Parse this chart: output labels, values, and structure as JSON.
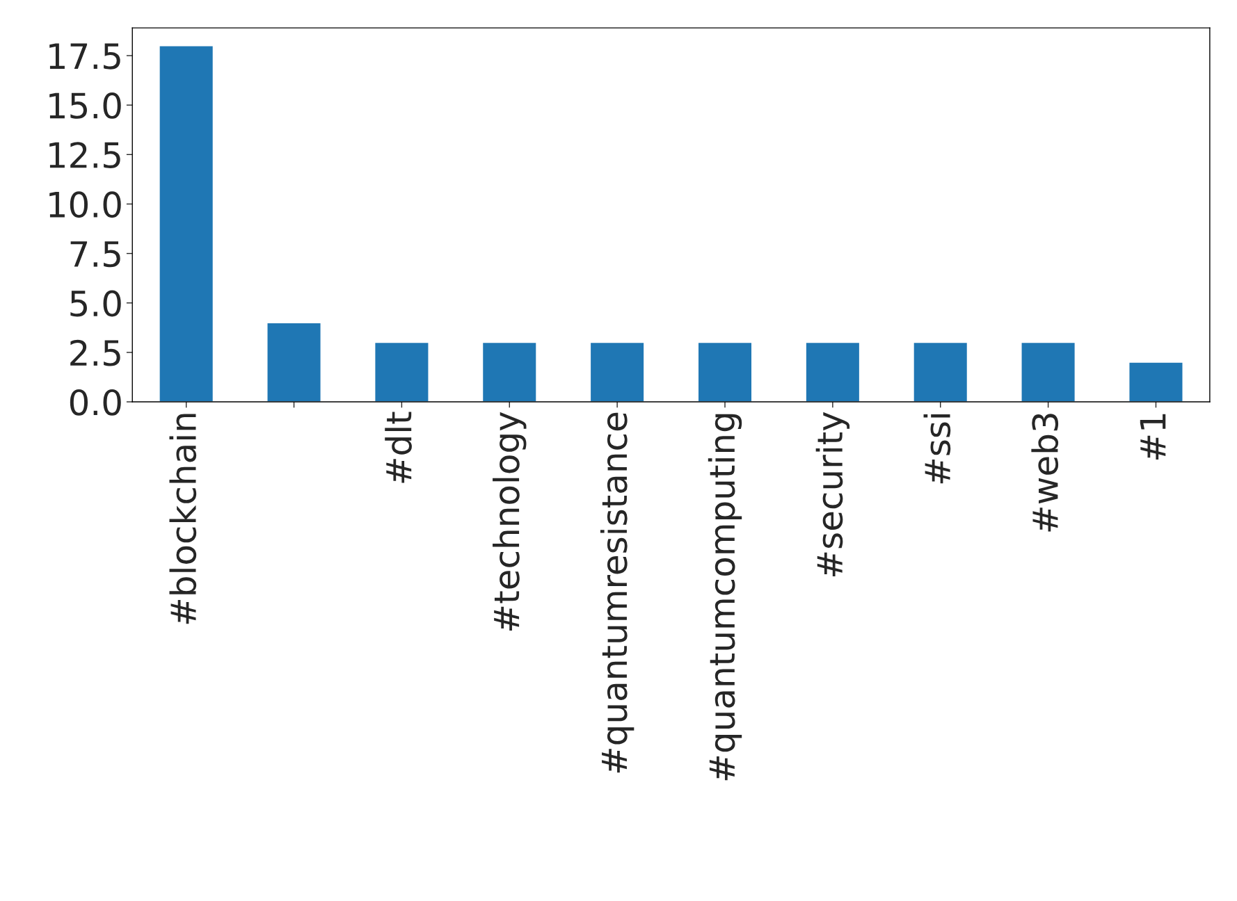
{
  "chart_data": {
    "type": "bar",
    "categories": [
      "#blockchain",
      null,
      "#dlt",
      "#technology",
      "#quantumresistance",
      "#quantumcomputing",
      "#security",
      "#ssi",
      "#web3",
      "#1"
    ],
    "values": [
      18,
      4,
      3,
      3,
      3,
      3,
      3,
      3,
      3,
      2
    ],
    "color": "#1f77b4",
    "ylim": [
      0,
      18.9
    ],
    "yticks": [
      {
        "value": 0,
        "label": "0.0"
      },
      {
        "value": 2.5,
        "label": "2.5"
      },
      {
        "value": 5,
        "label": "5.0"
      },
      {
        "value": 7.5,
        "label": "7.5"
      },
      {
        "value": 10,
        "label": "10.0"
      },
      {
        "value": 12.5,
        "label": "12.5"
      },
      {
        "value": 15,
        "label": "15.0"
      },
      {
        "value": 17.5,
        "label": "17.5"
      }
    ],
    "grid": false,
    "legend": false
  }
}
